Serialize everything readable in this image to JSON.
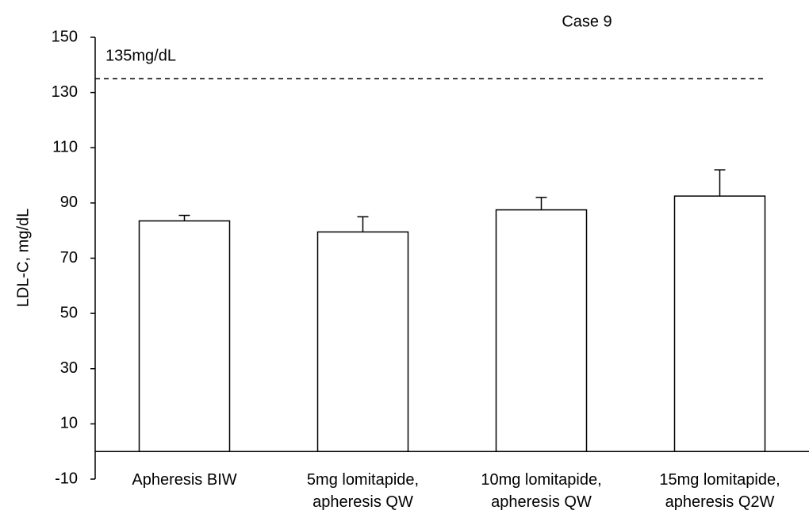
{
  "chart_data": {
    "type": "bar",
    "title": "Case 9",
    "y_label": "LDL-C, mg/dL",
    "categories": [
      [
        "Apheresis BIW"
      ],
      [
        "5mg lomitapide,",
        "apheresis QW"
      ],
      [
        "10mg lomitapide,",
        "apheresis QW"
      ],
      [
        "15mg lomitapide,",
        "apheresis Q2W"
      ]
    ],
    "values": [
      83.5,
      79.5,
      87.5,
      92.5
    ],
    "errors": [
      2,
      5.5,
      4.5,
      9.5
    ],
    "color": "#ffffff",
    "edge_color": "#000000",
    "reference": {
      "value": 135,
      "label": "135mg/dL"
    },
    "ylim": [
      -10,
      150
    ],
    "yticks": [
      -10,
      10,
      30,
      50,
      70,
      90,
      110,
      130,
      150
    ],
    "grid": false
  }
}
